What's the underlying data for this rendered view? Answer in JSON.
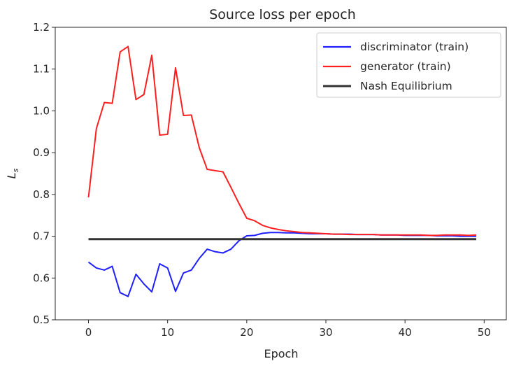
{
  "chart_data": {
    "type": "line",
    "title": "Source loss per epoch",
    "xlabel": "Epoch",
    "ylabel_main": "L",
    "ylabel_sub": "s",
    "xlim": [
      -4.2,
      52.8
    ],
    "ylim": [
      0.5,
      1.2
    ],
    "xticks": [
      0,
      10,
      20,
      30,
      40,
      50
    ],
    "yticks": [
      0.5,
      0.6,
      0.7,
      0.8,
      0.9,
      1.0,
      1.1,
      1.2
    ],
    "ytick_labels": [
      "0.5",
      "0.6",
      "0.7",
      "0.8",
      "0.9",
      "1.0",
      "1.1",
      "1.2"
    ],
    "grid": false,
    "legend_position": "top-right",
    "series": [
      {
        "name": "discriminator (train)",
        "color": "#1f1fff",
        "x": [
          0,
          1,
          2,
          3,
          4,
          5,
          6,
          7,
          8,
          9,
          10,
          11,
          12,
          13,
          14,
          15,
          16,
          17,
          18,
          19,
          20,
          21,
          22,
          23,
          24,
          25,
          26,
          27,
          28,
          29,
          30,
          31,
          32,
          33,
          34,
          35,
          36,
          37,
          38,
          39,
          40,
          41,
          42,
          43,
          44,
          45,
          46,
          47,
          48,
          49
        ],
        "y": [
          0.638,
          0.624,
          0.619,
          0.628,
          0.565,
          0.556,
          0.609,
          0.586,
          0.567,
          0.634,
          0.624,
          0.568,
          0.612,
          0.619,
          0.647,
          0.669,
          0.663,
          0.66,
          0.669,
          0.689,
          0.701,
          0.702,
          0.707,
          0.709,
          0.709,
          0.708,
          0.708,
          0.707,
          0.706,
          0.706,
          0.706,
          0.705,
          0.705,
          0.705,
          0.704,
          0.704,
          0.704,
          0.703,
          0.703,
          0.703,
          0.702,
          0.702,
          0.702,
          0.702,
          0.701,
          0.701,
          0.701,
          0.7,
          0.7,
          0.7
        ]
      },
      {
        "name": "generator (train)",
        "color": "#ff1f1f",
        "x": [
          0,
          1,
          2,
          3,
          4,
          5,
          6,
          7,
          8,
          9,
          10,
          11,
          12,
          13,
          14,
          15,
          16,
          17,
          18,
          19,
          20,
          21,
          22,
          23,
          24,
          25,
          26,
          27,
          28,
          29,
          30,
          31,
          32,
          33,
          34,
          35,
          36,
          37,
          38,
          39,
          40,
          41,
          42,
          43,
          44,
          45,
          46,
          47,
          48,
          49
        ],
        "y": [
          0.793,
          0.958,
          1.02,
          1.018,
          1.141,
          1.154,
          1.027,
          1.039,
          1.133,
          0.942,
          0.944,
          1.103,
          0.989,
          0.99,
          0.912,
          0.86,
          0.857,
          0.854,
          0.817,
          0.779,
          0.743,
          0.737,
          0.726,
          0.72,
          0.716,
          0.713,
          0.711,
          0.709,
          0.708,
          0.707,
          0.706,
          0.705,
          0.705,
          0.704,
          0.704,
          0.704,
          0.704,
          0.703,
          0.703,
          0.703,
          0.703,
          0.703,
          0.703,
          0.702,
          0.702,
          0.703,
          0.703,
          0.703,
          0.702,
          0.703
        ]
      },
      {
        "name": "Nash Equilibrium",
        "color": "#333333",
        "x": [
          0,
          49
        ],
        "y": [
          0.693,
          0.693
        ]
      }
    ]
  }
}
